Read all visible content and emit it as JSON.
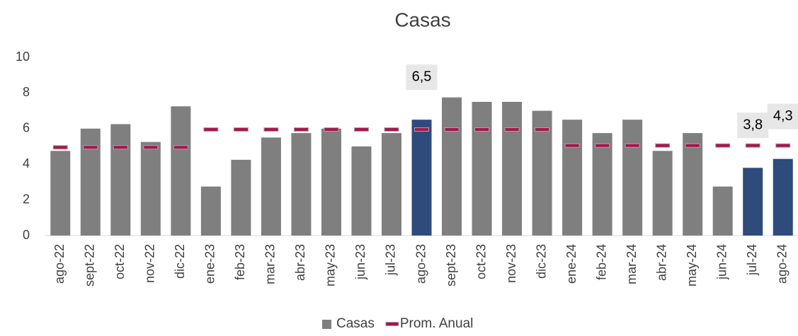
{
  "chart_data": {
    "type": "bar",
    "title": "Casas",
    "categories": [
      "ago-22",
      "sept-22",
      "oct-22",
      "nov-22",
      "dic-22",
      "ene-23",
      "feb-23",
      "mar-23",
      "abr-23",
      "may-23",
      "jun-23",
      "jul-23",
      "ago-23",
      "sept-23",
      "oct-23",
      "nov-23",
      "dic-23",
      "ene-24",
      "feb-24",
      "mar-24",
      "abr-24",
      "may-24",
      "jun-24",
      "jul-24",
      "ago-24"
    ],
    "series": [
      {
        "name": "Casas",
        "color": "#7f7f7f",
        "colors": [
          "#7f7f7f",
          "#7f7f7f",
          "#7f7f7f",
          "#7f7f7f",
          "#7f7f7f",
          "#7f7f7f",
          "#7f7f7f",
          "#7f7f7f",
          "#7f7f7f",
          "#7f7f7f",
          "#7f7f7f",
          "#7f7f7f",
          "#2f4b7c",
          "#7f7f7f",
          "#7f7f7f",
          "#7f7f7f",
          "#7f7f7f",
          "#7f7f7f",
          "#7f7f7f",
          "#7f7f7f",
          "#7f7f7f",
          "#7f7f7f",
          "#7f7f7f",
          "#2f4b7c",
          "#2f4b7c"
        ],
        "values": [
          4.75,
          6.0,
          6.25,
          5.25,
          7.25,
          2.75,
          4.25,
          5.5,
          5.75,
          6.0,
          5.0,
          5.75,
          6.5,
          7.75,
          7.5,
          7.5,
          7.0,
          6.5,
          5.75,
          6.5,
          4.75,
          5.75,
          2.75,
          3.8,
          4.3
        ],
        "value_labels": [
          null,
          null,
          null,
          null,
          null,
          null,
          null,
          null,
          null,
          null,
          null,
          null,
          "6,5",
          null,
          null,
          null,
          null,
          null,
          null,
          null,
          null,
          null,
          null,
          "3,8",
          "4,3"
        ]
      },
      {
        "name": "Prom. Anual",
        "color": "#a3174a",
        "marker": "dash",
        "values": [
          4.95,
          4.95,
          4.95,
          4.95,
          4.95,
          5.95,
          5.95,
          5.95,
          5.95,
          5.95,
          5.95,
          5.95,
          5.95,
          5.95,
          5.95,
          5.95,
          5.95,
          5.05,
          5.05,
          5.05,
          5.05,
          5.05,
          5.05,
          5.05,
          5.05
        ]
      }
    ],
    "ylim": [
      0,
      10
    ],
    "yticks": [
      0,
      2,
      4,
      6,
      8,
      10
    ],
    "grid": false,
    "legend": "bottom"
  }
}
